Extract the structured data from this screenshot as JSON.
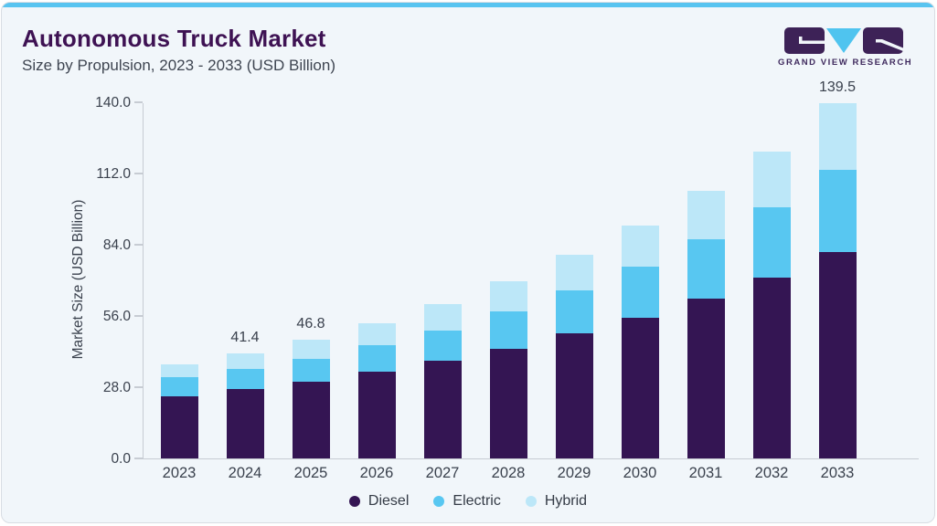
{
  "header": {
    "title": "Autonomous Truck Market",
    "subtitle": "Size by Propulsion, 2023 - 2033 (USD Billion)"
  },
  "logo": {
    "wordmark": "GRAND VIEW RESEARCH",
    "purple": "#3d2257",
    "blue": "#4fc4ef"
  },
  "chart_data": {
    "type": "bar",
    "stacked": true,
    "title": "Autonomous Truck Market",
    "subtitle": "Size by Propulsion, 2023 - 2033 (USD Billion)",
    "ylabel": "Market Size (USD Billion)",
    "xlabel": "",
    "categories": [
      "2023",
      "2024",
      "2025",
      "2026",
      "2027",
      "2028",
      "2029",
      "2030",
      "2031",
      "2032",
      "2033"
    ],
    "series": [
      {
        "name": "Diesel",
        "color": "#341553",
        "values": [
          24.5,
          27.3,
          30.3,
          34.1,
          38.3,
          43.2,
          49.2,
          55.3,
          62.7,
          71.2,
          81.0
        ]
      },
      {
        "name": "Electric",
        "color": "#58c7f1",
        "values": [
          7.3,
          7.8,
          8.7,
          10.5,
          12.1,
          14.5,
          16.7,
          20.2,
          23.5,
          27.5,
          32.3
        ]
      },
      {
        "name": "Hybrid",
        "color": "#bce7f8",
        "values": [
          5.1,
          6.3,
          7.8,
          8.6,
          10.1,
          12.0,
          14.1,
          16.0,
          19.0,
          22.0,
          26.2
        ]
      }
    ],
    "totals": [
      36.9,
      41.4,
      46.8,
      53.2,
      60.5,
      69.7,
      80.0,
      91.5,
      105.2,
      120.7,
      139.5
    ],
    "total_labels": [
      "",
      "41.4",
      "46.8",
      "",
      "",
      "",
      "",
      "",
      "",
      "",
      "139.5"
    ],
    "y_ticks": [
      "0.0",
      "28.0",
      "56.0",
      "84.0",
      "112.0",
      "140.0"
    ],
    "ylim": [
      0,
      140
    ],
    "grid": false,
    "legend_position": "bottom"
  }
}
